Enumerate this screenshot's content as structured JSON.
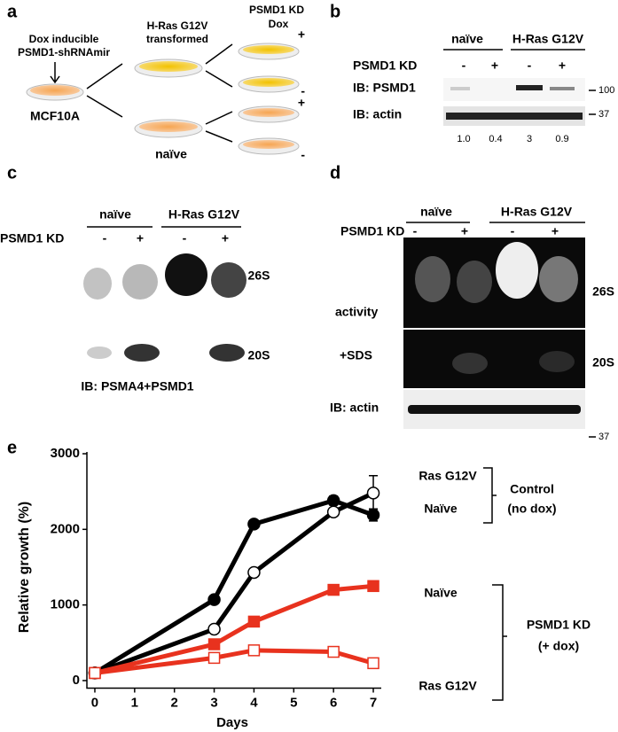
{
  "panel_a": {
    "label": "a",
    "inducer": [
      "Dox inducible",
      "PSMD1-shRNAmir"
    ],
    "cell_line": "MCF10A",
    "transformed": [
      "H-Ras G12V",
      "transformed"
    ],
    "naive": "naïve",
    "treatment": [
      "PSMD1 KD",
      "Dox"
    ],
    "signs": [
      "+",
      "-",
      "+",
      "-"
    ]
  },
  "panel_b": {
    "label": "b",
    "groups": [
      "naïve",
      "H-Ras G12V"
    ],
    "row_label": "PSMD1 KD",
    "signs": [
      "-",
      "+",
      "-",
      "+"
    ],
    "blots": [
      "IB: PSMD1",
      "IB: actin"
    ],
    "markers": [
      "100",
      "37"
    ],
    "quantification": [
      "1.0",
      "0.4",
      "3",
      "0.9"
    ]
  },
  "panel_c": {
    "label": "c",
    "groups": [
      "naïve",
      "H-Ras G12V"
    ],
    "row_label": "PSMD1 KD",
    "signs": [
      "-",
      "+",
      "-",
      "+"
    ],
    "bands": [
      "26S",
      "20S"
    ],
    "caption": "IB: PSMA4+PSMD1"
  },
  "panel_d": {
    "label": "d",
    "groups": [
      "naïve",
      "H-Ras G12V"
    ],
    "row_label": "PSMD1 KD",
    "signs": [
      "-",
      "+",
      "-",
      "+"
    ],
    "bands": [
      "26S",
      "20S"
    ],
    "rows": [
      "activity",
      "+SDS",
      "IB: actin"
    ],
    "marker": "37"
  },
  "chart_data": {
    "type": "line",
    "panel_label": "e",
    "x_label": "Days",
    "y_label": "Relative growth (%)",
    "x": [
      0,
      3,
      4,
      6,
      7
    ],
    "series": [
      {
        "color": "#000000",
        "marker": "circle",
        "filled": true,
        "values": [
          100,
          1070,
          2070,
          2380,
          2190
        ],
        "errors": [
          0,
          40,
          40,
          60,
          80
        ]
      },
      {
        "color": "#000000",
        "marker": "circle",
        "filled": false,
        "values": [
          100,
          680,
          1430,
          2230,
          2480
        ],
        "errors": [
          0,
          30,
          30,
          50,
          230
        ]
      },
      {
        "color": "#e8321e",
        "marker": "square",
        "filled": true,
        "values": [
          100,
          480,
          780,
          1200,
          1250
        ]
      },
      {
        "color": "#e8321e",
        "marker": "square",
        "filled": false,
        "values": [
          100,
          300,
          400,
          380,
          230
        ]
      }
    ],
    "xlim": [
      -0.2,
      7.2
    ],
    "xticks": [
      0,
      1,
      2,
      3,
      4,
      5,
      6,
      7
    ],
    "ylim": [
      -100,
      3000
    ],
    "yticks": [
      0,
      1000,
      2000,
      3000
    ],
    "annotations": [
      "Ras G12V",
      "Naïve",
      "Control",
      "(no dox)",
      "Naïve",
      "PSMD1 KD",
      "(+ dox)",
      "Ras G12V"
    ]
  }
}
